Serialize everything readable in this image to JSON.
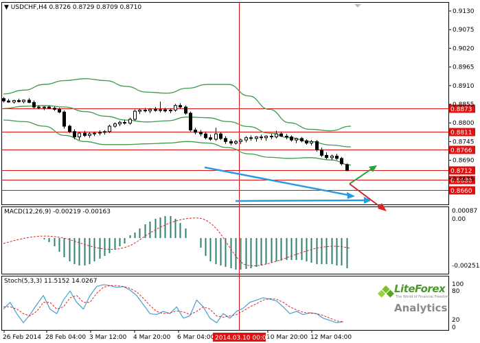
{
  "header": {
    "symbol": "USDCHF,H4",
    "ohlc": "0.8726 0.8729 0.8709 0.8710"
  },
  "main_axis": {
    "ticks": [
      "0.9130",
      "0.9075",
      "0.9020",
      "0.8965",
      "0.8910",
      "0.8855",
      "0.8800",
      "0.8745",
      "0.8690",
      "0.8635"
    ],
    "levels": [
      {
        "label": "0.8873",
        "value": 0.8873
      },
      {
        "label": "0.8811",
        "value": 0.8811
      },
      {
        "label": "0.8766",
        "value": 0.8766
      },
      {
        "label": "0.8712",
        "value": 0.8712
      },
      {
        "label": "0.8686",
        "value": 0.8686
      },
      {
        "label": "0.8660",
        "value": 0.866
      }
    ]
  },
  "macd": {
    "label": "MACD(12,26,9) -0.00219 -0.00163",
    "ticks": [
      "0.00087",
      "0.00",
      "-0.00251"
    ]
  },
  "stoch": {
    "label": "Stoch(5,3,3) 11.5152 14.0267",
    "ticks": [
      "100",
      "80",
      "20",
      "0"
    ]
  },
  "time_axis": {
    "labels": [
      "26 Feb 2014",
      "28 Feb 04:00",
      "3 Mar 12:00",
      "4 Mar 20:00",
      "6 Mar 04:00",
      "10 Mar 20:00",
      "12 Mar 04:00"
    ],
    "crosshair_label": "2014.03.10 00:00"
  },
  "logo": {
    "brand": "LiteForex",
    "tagline": "The World of Financial Freedom",
    "subtitle": "Analytics"
  },
  "colors": {
    "bollinger": "#3a9a4a",
    "level_line": "#e01010",
    "level_box": "#e01010",
    "trend_blue": "#2a9ae0",
    "arrow_green": "#2aa040",
    "arrow_red": "#e02020",
    "macd_hist": "#2f7f6f",
    "stoch_main": "#40a0d0",
    "stoch_signal": "#e02020"
  },
  "chart_data": {
    "type": "candlestick",
    "price_range": [
      0.8622,
      0.9148
    ],
    "candles": [
      [
        0.8898,
        0.8902,
        0.8888,
        0.8892
      ],
      [
        0.8892,
        0.8897,
        0.8887,
        0.8889
      ],
      [
        0.8889,
        0.8895,
        0.8885,
        0.8893
      ],
      [
        0.8893,
        0.8898,
        0.8888,
        0.889
      ],
      [
        0.889,
        0.8896,
        0.8886,
        0.8894
      ],
      [
        0.8894,
        0.8899,
        0.8886,
        0.8888
      ],
      [
        0.8888,
        0.8893,
        0.8872,
        0.8876
      ],
      [
        0.8876,
        0.888,
        0.887,
        0.8874
      ],
      [
        0.8874,
        0.8878,
        0.8868,
        0.8876
      ],
      [
        0.8876,
        0.888,
        0.8871,
        0.8873
      ],
      [
        0.8873,
        0.8877,
        0.8866,
        0.887
      ],
      [
        0.887,
        0.8874,
        0.886,
        0.8863
      ],
      [
        0.8863,
        0.8867,
        0.882,
        0.8826
      ],
      [
        0.8826,
        0.883,
        0.8808,
        0.8812
      ],
      [
        0.8812,
        0.8818,
        0.8792,
        0.8798
      ],
      [
        0.8798,
        0.8812,
        0.879,
        0.8808
      ],
      [
        0.8808,
        0.8814,
        0.8798,
        0.8802
      ],
      [
        0.8802,
        0.881,
        0.8796,
        0.8806
      ],
      [
        0.8806,
        0.8812,
        0.88,
        0.8808
      ],
      [
        0.8808,
        0.8815,
        0.8802,
        0.881
      ],
      [
        0.881,
        0.8816,
        0.8804,
        0.8812
      ],
      [
        0.8812,
        0.883,
        0.8808,
        0.8826
      ],
      [
        0.8826,
        0.8836,
        0.8822,
        0.8832
      ],
      [
        0.8832,
        0.884,
        0.8826,
        0.8836
      ],
      [
        0.8836,
        0.8842,
        0.883,
        0.8834
      ],
      [
        0.8834,
        0.8848,
        0.883,
        0.8844
      ],
      [
        0.8844,
        0.887,
        0.884,
        0.8865
      ],
      [
        0.8865,
        0.8872,
        0.8858,
        0.8868
      ],
      [
        0.8868,
        0.8874,
        0.8862,
        0.8866
      ],
      [
        0.8866,
        0.8873,
        0.886,
        0.887
      ],
      [
        0.887,
        0.8876,
        0.8864,
        0.8867
      ],
      [
        0.8867,
        0.889,
        0.8862,
        0.8869
      ],
      [
        0.8869,
        0.8874,
        0.8862,
        0.8866
      ],
      [
        0.8866,
        0.8872,
        0.886,
        0.8868
      ],
      [
        0.8868,
        0.8884,
        0.8864,
        0.888
      ],
      [
        0.888,
        0.8886,
        0.8872,
        0.8876
      ],
      [
        0.8876,
        0.888,
        0.8856,
        0.886
      ],
      [
        0.886,
        0.8864,
        0.8812,
        0.8816
      ],
      [
        0.8816,
        0.8822,
        0.8805,
        0.881
      ],
      [
        0.881,
        0.8816,
        0.88,
        0.8806
      ],
      [
        0.8806,
        0.8812,
        0.8792,
        0.8796
      ],
      [
        0.8796,
        0.8804,
        0.8788,
        0.8792
      ],
      [
        0.8792,
        0.8822,
        0.8788,
        0.8806
      ],
      [
        0.8806,
        0.881,
        0.879,
        0.8794
      ],
      [
        0.8794,
        0.88,
        0.878,
        0.8786
      ],
      [
        0.8786,
        0.8792,
        0.8776,
        0.8782
      ],
      [
        0.8782,
        0.879,
        0.8778,
        0.8786
      ],
      [
        0.8786,
        0.8794,
        0.878,
        0.879
      ],
      [
        0.879,
        0.88,
        0.8784,
        0.8796
      ],
      [
        0.8796,
        0.8802,
        0.8788,
        0.8794
      ],
      [
        0.8794,
        0.88,
        0.8786,
        0.8798
      ],
      [
        0.8798,
        0.8804,
        0.879,
        0.8796
      ],
      [
        0.8796,
        0.8802,
        0.8788,
        0.88
      ],
      [
        0.88,
        0.8806,
        0.8792,
        0.8798
      ],
      [
        0.8798,
        0.8814,
        0.8794,
        0.8806
      ],
      [
        0.8806,
        0.8812,
        0.8798,
        0.88
      ],
      [
        0.88,
        0.8806,
        0.8792,
        0.8798
      ],
      [
        0.8798,
        0.8802,
        0.8786,
        0.879
      ],
      [
        0.879,
        0.8796,
        0.8782,
        0.8794
      ],
      [
        0.8794,
        0.8798,
        0.8784,
        0.8788
      ],
      [
        0.8788,
        0.8792,
        0.8778,
        0.8782
      ],
      [
        0.8782,
        0.879,
        0.8776,
        0.8786
      ],
      [
        0.8786,
        0.879,
        0.876,
        0.8764
      ],
      [
        0.8764,
        0.877,
        0.8746,
        0.875
      ],
      [
        0.875,
        0.8758,
        0.874,
        0.8744
      ],
      [
        0.8744,
        0.8752,
        0.8738,
        0.8748
      ],
      [
        0.8748,
        0.8754,
        0.8738,
        0.8742
      ],
      [
        0.8742,
        0.8746,
        0.8724,
        0.8728
      ],
      [
        0.8726,
        0.8729,
        0.8709,
        0.871
      ]
    ],
    "bollinger_upper": [
      0.891,
      0.892,
      0.8935,
      0.8945,
      0.895,
      0.8945,
      0.893,
      0.8915,
      0.8912,
      0.8925,
      0.8935,
      0.8935,
      0.8905,
      0.887,
      0.8835,
      0.8818,
      0.8814,
      0.8826
    ],
    "bollinger_middle": [
      0.8872,
      0.8878,
      0.888,
      0.8876,
      0.8864,
      0.8852,
      0.8842,
      0.8837,
      0.884,
      0.885,
      0.8848,
      0.8838,
      0.8825,
      0.8808,
      0.8796,
      0.8786,
      0.8777,
      0.8772
    ],
    "bollinger_lower": [
      0.8842,
      0.8838,
      0.8826,
      0.8802,
      0.8786,
      0.8778,
      0.8778,
      0.878,
      0.8782,
      0.8786,
      0.8782,
      0.877,
      0.8754,
      0.8745,
      0.8742,
      0.8744,
      0.8738,
      0.8725
    ]
  }
}
